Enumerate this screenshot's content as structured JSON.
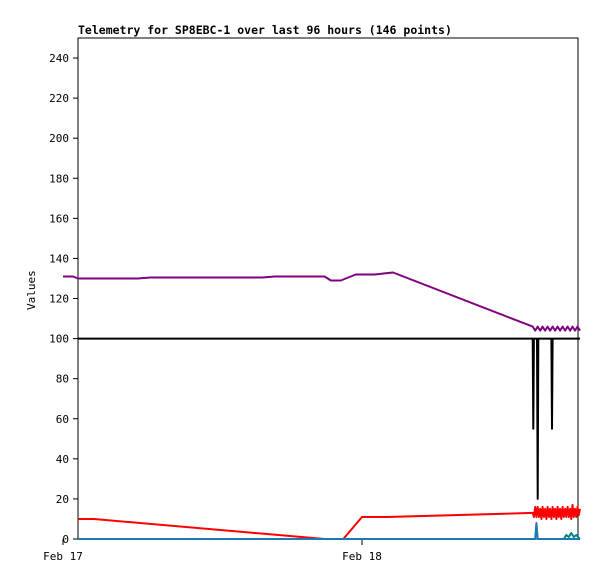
{
  "chart_data": {
    "type": "line",
    "title": "Telemetry for SP8EBC-1 over last 96 hours (146 points)",
    "ylabel": "Values",
    "xlabel": "",
    "ylim": [
      0,
      250
    ],
    "yticks": [
      0,
      20,
      40,
      60,
      80,
      100,
      120,
      140,
      160,
      180,
      200,
      220,
      240
    ],
    "x_ticks": [
      {
        "label": "Feb 17",
        "hour": 0
      },
      {
        "label": "Feb 18",
        "hour": 24
      }
    ],
    "xlim_hours": [
      0,
      41.5
    ],
    "grid": false,
    "series": [
      {
        "color": "#800080",
        "points": [
          [
            0,
            131
          ],
          [
            0.8,
            131
          ],
          [
            1.2,
            130
          ],
          [
            6,
            130
          ],
          [
            7,
            130.5
          ],
          [
            16,
            130.5
          ],
          [
            17,
            131
          ],
          [
            21,
            131
          ],
          [
            21.5,
            129
          ],
          [
            22.3,
            129
          ],
          [
            23.5,
            132
          ],
          [
            25,
            132
          ],
          [
            26.5,
            133
          ],
          [
            37.7,
            106
          ],
          [
            37.9,
            104
          ],
          [
            38.1,
            106
          ],
          [
            38.3,
            104
          ],
          [
            38.5,
            106
          ],
          [
            38.7,
            104
          ],
          [
            38.9,
            106
          ],
          [
            39.1,
            104
          ],
          [
            39.3,
            106
          ],
          [
            39.5,
            104
          ],
          [
            39.7,
            106
          ],
          [
            39.9,
            104
          ],
          [
            40.1,
            106
          ],
          [
            40.3,
            104
          ],
          [
            40.5,
            106
          ],
          [
            40.7,
            104
          ],
          [
            40.9,
            106
          ],
          [
            41.1,
            104
          ],
          [
            41.3,
            106
          ],
          [
            41.5,
            104
          ]
        ]
      },
      {
        "color": "#000000",
        "points": [
          [
            1.2,
            100
          ],
          [
            37.7,
            100
          ],
          [
            37.75,
            55
          ],
          [
            37.8,
            100
          ],
          [
            38.05,
            100
          ],
          [
            38.1,
            20
          ],
          [
            38.15,
            100
          ],
          [
            39.2,
            100
          ],
          [
            39.25,
            55
          ],
          [
            39.3,
            100
          ],
          [
            41.5,
            100
          ]
        ]
      },
      {
        "color": "#ff0000",
        "points": [
          [
            1.2,
            10
          ],
          [
            2.5,
            10
          ],
          [
            21,
            0
          ],
          [
            22.5,
            0
          ],
          [
            24,
            11
          ],
          [
            26,
            11
          ],
          [
            37.7,
            13
          ],
          [
            37.8,
            11
          ],
          [
            37.9,
            16
          ],
          [
            38,
            11
          ],
          [
            38.1,
            16
          ],
          [
            38.2,
            11
          ],
          [
            38.3,
            15
          ],
          [
            38.4,
            10
          ],
          [
            38.5,
            16
          ],
          [
            38.6,
            11
          ],
          [
            38.7,
            15
          ],
          [
            38.8,
            10
          ],
          [
            38.9,
            16
          ],
          [
            39,
            11
          ],
          [
            39.1,
            15
          ],
          [
            39.2,
            10
          ],
          [
            39.3,
            16
          ],
          [
            39.4,
            11
          ],
          [
            39.5,
            15
          ],
          [
            39.6,
            10
          ],
          [
            39.7,
            16
          ],
          [
            39.8,
            11
          ],
          [
            39.9,
            15
          ],
          [
            40,
            10
          ],
          [
            40.1,
            16
          ],
          [
            40.2,
            11
          ],
          [
            40.3,
            15
          ],
          [
            40.4,
            11
          ],
          [
            40.5,
            16
          ],
          [
            40.6,
            11
          ],
          [
            40.7,
            15
          ],
          [
            40.8,
            10
          ],
          [
            40.9,
            17
          ],
          [
            41,
            11
          ],
          [
            41.1,
            15
          ],
          [
            41.2,
            11
          ],
          [
            41.3,
            16
          ],
          [
            41.4,
            12
          ],
          [
            41.5,
            15
          ]
        ]
      },
      {
        "color": "#1f77b4",
        "points": [
          [
            1.2,
            0
          ],
          [
            37.9,
            0
          ],
          [
            38.0,
            8
          ],
          [
            38.1,
            0
          ],
          [
            41.5,
            0
          ]
        ]
      },
      {
        "color": "#008080",
        "points": [
          [
            40.2,
            0
          ],
          [
            40.4,
            2
          ],
          [
            40.6,
            1
          ],
          [
            40.8,
            3
          ],
          [
            41.0,
            1
          ],
          [
            41.2,
            2
          ],
          [
            41.5,
            0
          ]
        ]
      }
    ]
  }
}
